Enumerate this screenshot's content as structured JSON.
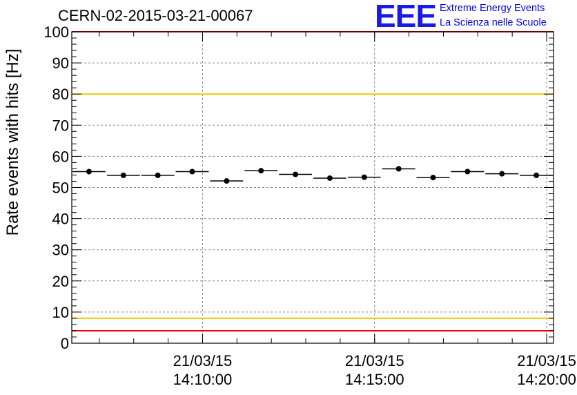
{
  "header": {
    "run_title": "CERN-02-2015-03-21-00067"
  },
  "logo": {
    "mark": "EEE",
    "line1": "Extreme Energy Events",
    "line2": "La Scienza nelle Scuole",
    "color": "#0000ee"
  },
  "chart_data": {
    "type": "scatter",
    "title": "CERN-02-2015-03-21-00067",
    "ylabel": "Rate events with hits [Hz]",
    "xlabel": "",
    "ylim": [
      0,
      100
    ],
    "yticks": [
      0,
      10,
      20,
      30,
      40,
      50,
      60,
      70,
      80,
      90,
      100
    ],
    "x_axis_type": "time",
    "xlim_minutes": [
      0,
      14.0
    ],
    "xticks": [
      {
        "minute": 3.8,
        "date": "21/03/15",
        "time": "14:10:00"
      },
      {
        "minute": 8.8,
        "date": "21/03/15",
        "time": "14:15:00"
      },
      {
        "minute": 13.8,
        "date": "21/03/15",
        "time": "14:20:00"
      }
    ],
    "grid": true,
    "bin_width_minutes": 1.0,
    "series": [
      {
        "x_minutes": [
          0.5,
          1.5,
          2.5,
          3.5,
          4.5,
          5.5,
          6.5,
          7.5,
          8.5,
          9.5,
          10.5,
          11.5,
          12.5,
          13.5
        ],
        "values": [
          55.1,
          53.9,
          53.9,
          55.1,
          52.1,
          55.4,
          54.2,
          53.0,
          53.3,
          56.0,
          53.2,
          55.1,
          54.4,
          53.9
        ],
        "color": "#000000"
      }
    ],
    "reference_lines": [
      {
        "y": 100,
        "color": "#ff0000"
      },
      {
        "y": 80,
        "color": "#f0c800"
      },
      {
        "y": 8,
        "color": "#f0c800"
      },
      {
        "y": 4,
        "color": "#ff0000"
      }
    ]
  }
}
